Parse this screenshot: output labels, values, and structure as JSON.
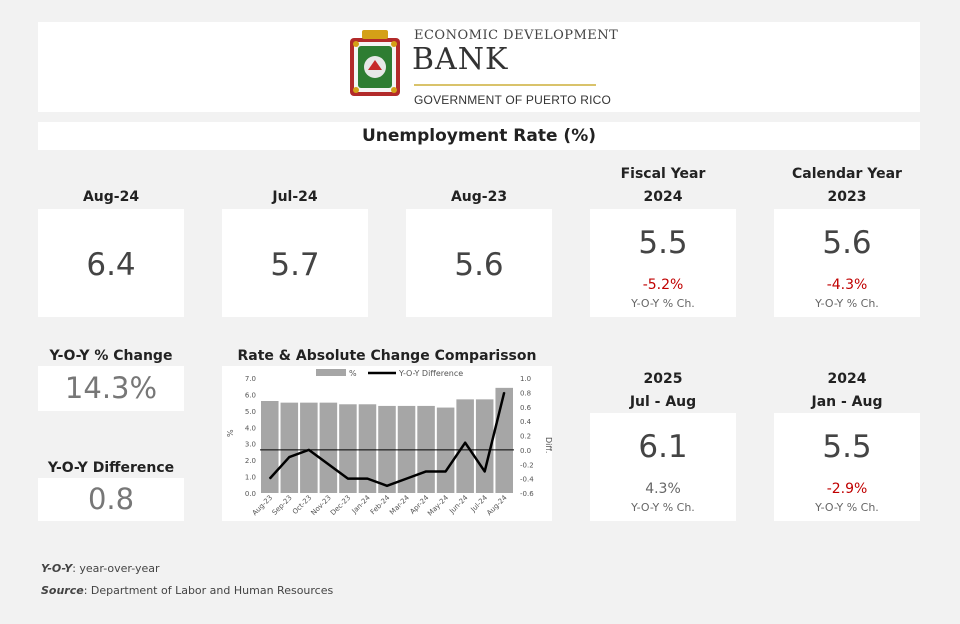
{
  "header": {
    "line1": "ECONOMIC DEVELOPMENT",
    "line2": "BANK",
    "line3": "GOVERNMENT OF PUERTO RICO"
  },
  "title": "Unemployment Rate (%)",
  "cards": {
    "aug24": {
      "label": "Aug-24",
      "value": "6.4"
    },
    "jul24": {
      "label": "Jul-24",
      "value": "5.7"
    },
    "aug23": {
      "label": "Aug-23",
      "value": "5.6"
    },
    "fy": {
      "label1": "Fiscal Year",
      "label2": "2024",
      "value": "5.5",
      "change": "-5.2%",
      "note": "Y-O-Y % Ch."
    },
    "cy": {
      "label1": "Calendar Year",
      "label2": "2023",
      "value": "5.6",
      "change": "-4.3%",
      "note": "Y-O-Y % Ch."
    },
    "ytd25": {
      "label1": "2025",
      "label2": "Jul - Aug",
      "value": "6.1",
      "change": "4.3%",
      "note": "Y-O-Y % Ch."
    },
    "ytd24": {
      "label1": "2024",
      "label2": "Jan - Aug",
      "value": "5.5",
      "change": "-2.9%",
      "note": "Y-O-Y % Ch."
    }
  },
  "yoy_change": {
    "label": "Y-O-Y % Change",
    "value": "14.3%"
  },
  "yoy_diff": {
    "label": "Y-O-Y Difference",
    "value": "0.8"
  },
  "footer": {
    "yoy_term": "Y-O-Y",
    "yoy_text": ": year-over-year",
    "source_term": "Source",
    "source_text": ": Department of Labor and Human Resources"
  },
  "colors": {
    "bar": "#a6a6a6",
    "line": "#000000",
    "negative": "#c00000"
  },
  "chart_data": {
    "type": "bar",
    "title": "Rate & Absolute Change Comparisson",
    "categories": [
      "Aug-23",
      "Sep-23",
      "Oct-23",
      "Nov-23",
      "Dec-23",
      "Jan-24",
      "Feb-24",
      "Mar-24",
      "Apr-24",
      "May-24",
      "Jun-24",
      "Jul-24",
      "Aug-24"
    ],
    "series": [
      {
        "name": "%",
        "type": "bar",
        "axis": "left",
        "values": [
          5.6,
          5.5,
          5.5,
          5.5,
          5.4,
          5.4,
          5.3,
          5.3,
          5.3,
          5.2,
          5.7,
          5.7,
          6.4
        ]
      },
      {
        "name": "Y-O-Y Difference",
        "type": "line",
        "axis": "right",
        "values": [
          -0.4,
          -0.1,
          0.0,
          -0.2,
          -0.4,
          -0.4,
          -0.5,
          -0.4,
          -0.3,
          -0.3,
          0.1,
          -0.3,
          0.8
        ]
      }
    ],
    "ylabel": "%",
    "y2label": "Diff.",
    "ylim": [
      0,
      7
    ],
    "y2lim": [
      -0.6,
      1.0
    ],
    "yticks": [
      "0.0",
      "1.0",
      "2.0",
      "3.0",
      "4.0",
      "5.0",
      "6.0",
      "7.0"
    ],
    "y2ticks": [
      "-0.6",
      "-0.4",
      "-0.2",
      "0.0",
      "0.2",
      "0.4",
      "0.6",
      "0.8",
      "1.0"
    ],
    "legend": "top",
    "grid": false
  }
}
